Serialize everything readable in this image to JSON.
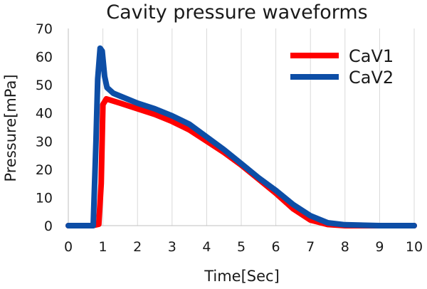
{
  "chart_data": {
    "type": "line",
    "title": "Cavity pressure waveforms",
    "xlabel": "Time[Sec]",
    "ylabel": "Pressure[mPa]",
    "xlim": [
      0,
      10
    ],
    "ylim": [
      0,
      70
    ],
    "xticks": [
      0,
      1,
      2,
      3,
      4,
      5,
      6,
      7,
      8,
      9,
      10
    ],
    "yticks": [
      0,
      10,
      20,
      30,
      40,
      50,
      60,
      70
    ],
    "grid": "vertical",
    "legend_position": "top-right",
    "series": [
      {
        "name": "CaV1",
        "color": "#ff0000",
        "x": [
          0,
          0.7,
          0.88,
          0.95,
          1.0,
          1.1,
          1.5,
          2.0,
          2.5,
          3.0,
          3.5,
          4.0,
          4.5,
          5.0,
          5.5,
          6.0,
          6.5,
          7.0,
          7.5,
          8.0,
          9.0,
          10.0
        ],
        "y": [
          0,
          0,
          0.5,
          15,
          43,
          45,
          43.5,
          41.5,
          39.5,
          37,
          34,
          30,
          26,
          21.5,
          16.5,
          11.5,
          6,
          2,
          0.4,
          0,
          0,
          0
        ]
      },
      {
        "name": "CaV2",
        "color": "#0d4ea6",
        "x": [
          0,
          0.72,
          0.8,
          0.85,
          0.92,
          0.98,
          1.05,
          1.12,
          1.3,
          1.5,
          2.0,
          2.5,
          3.0,
          3.5,
          4.0,
          4.5,
          5.0,
          5.5,
          6.0,
          6.5,
          7.0,
          7.5,
          8.0,
          9.0,
          10.0
        ],
        "y": [
          0,
          0,
          30,
          52,
          63,
          62,
          53,
          49,
          47,
          46,
          43.5,
          41.5,
          39,
          36,
          31.5,
          27,
          22,
          17,
          12.5,
          7.5,
          3.5,
          1,
          0.3,
          0,
          0
        ]
      }
    ]
  }
}
